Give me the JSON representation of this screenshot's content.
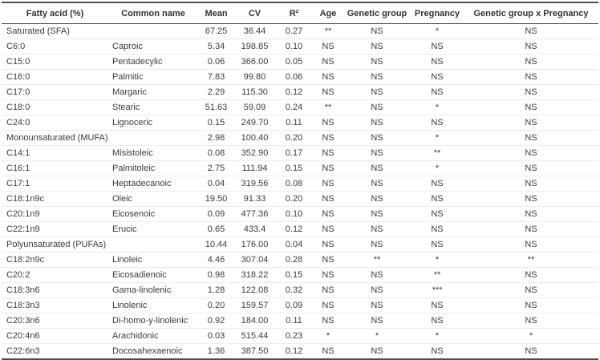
{
  "table": {
    "columns": [
      {
        "key": "fatty_acid",
        "label": "Fatty acid (%)"
      },
      {
        "key": "common_name",
        "label": "Common name"
      },
      {
        "key": "mean",
        "label": "Mean"
      },
      {
        "key": "cv",
        "label": "CV"
      },
      {
        "key": "r2",
        "label": "R²"
      },
      {
        "key": "age",
        "label": "Age"
      },
      {
        "key": "genetic_group",
        "label": "Genetic group"
      },
      {
        "key": "pregnancy",
        "label": "Pregnancy"
      },
      {
        "key": "interaction",
        "label": "Genetic group x Pregnancy"
      }
    ],
    "rows": [
      [
        "Saturated (SFA)",
        "",
        "67.25",
        "36.44",
        "0.27",
        "**",
        "NS",
        "*",
        "NS"
      ],
      [
        "C6:0",
        "Caproic",
        "5.34",
        "198.85",
        "0.10",
        "NS",
        "NS",
        "NS",
        "NS"
      ],
      [
        "C15:0",
        "Pentadecylic",
        "0.06",
        "366.00",
        "0.05",
        "NS",
        "NS",
        "NS",
        "NS"
      ],
      [
        "C16:0",
        "Palmitic",
        "7.83",
        "99.80",
        "0.06",
        "NS",
        "NS",
        "NS",
        "NS"
      ],
      [
        "C17:0",
        "Margaric",
        "2.29",
        "115.30",
        "0.12",
        "NS",
        "NS",
        "NS",
        "NS"
      ],
      [
        "C18:0",
        "Stearic",
        "51.63",
        "59.09",
        "0.24",
        "**",
        "NS",
        "*",
        "NS"
      ],
      [
        "C24:0",
        "Lignoceric",
        "0.15",
        "249.70",
        "0.11",
        "NS",
        "NS",
        "NS",
        "NS"
      ],
      [
        "Monounsaturated (MUFA)",
        "",
        "2.98",
        "100.40",
        "0.20",
        "NS",
        "NS",
        "*",
        "NS"
      ],
      [
        "C14:1",
        "Misistoleic",
        "0.08",
        "352.90",
        "0.17",
        "NS",
        "NS",
        "**",
        "NS"
      ],
      [
        "C16:1",
        "Palmitoleic",
        "2.75",
        "111.94",
        "0.15",
        "NS",
        "NS",
        "*",
        "NS"
      ],
      [
        "C17:1",
        "Heptadecanoic",
        "0.04",
        "319.56",
        "0.08",
        "NS",
        "NS",
        "NS",
        "NS"
      ],
      [
        "C18:1n9c",
        "Oleic",
        "19.50",
        "91.33",
        "0.20",
        "NS",
        "NS",
        "NS",
        "NS"
      ],
      [
        "C20:1n9",
        "Eicosenoic",
        "0.09",
        "477.36",
        "0.10",
        "NS",
        "NS",
        "NS",
        "NS"
      ],
      [
        "C22:1n9",
        "Erucic",
        "0.65",
        "433.4",
        "0.12",
        "NS",
        "NS",
        "NS",
        "NS"
      ],
      [
        "Polyunsaturated (PUFAs)",
        "",
        "10.44",
        "176.00",
        "0.04",
        "NS",
        "NS",
        "NS",
        "NS"
      ],
      [
        "C18:2n9c",
        "Linoleic",
        "4.46",
        "307.04",
        "0.28",
        "NS",
        "**",
        "*",
        "**"
      ],
      [
        "C20:2",
        "Eicosadienoic",
        "0.98",
        "318.22",
        "0.15",
        "NS",
        "NS",
        "**",
        "NS"
      ],
      [
        "C18:3n6",
        "Gama-linolenic",
        "1.28",
        "122.08",
        "0.32",
        "NS",
        "NS",
        "***",
        "NS"
      ],
      [
        "C18:3n3",
        "Linolenic",
        "0.20",
        "159.57",
        "0.09",
        "NS",
        "NS",
        "NS",
        "NS"
      ],
      [
        "C20:3n6",
        "Di-homo-y-linolenic",
        "0.92",
        "184.00",
        "0.11",
        "NS",
        "NS",
        "NS",
        "NS"
      ],
      [
        "C20:4n6",
        "Arachidonic",
        "0.03",
        "515.44",
        "0.23",
        "*",
        "*",
        "*",
        "*"
      ],
      [
        "C22:6n3",
        "Docosahexaenoic",
        "1.36",
        "387.50",
        "0.12",
        "NS",
        "NS",
        "NS",
        "NS"
      ]
    ]
  }
}
